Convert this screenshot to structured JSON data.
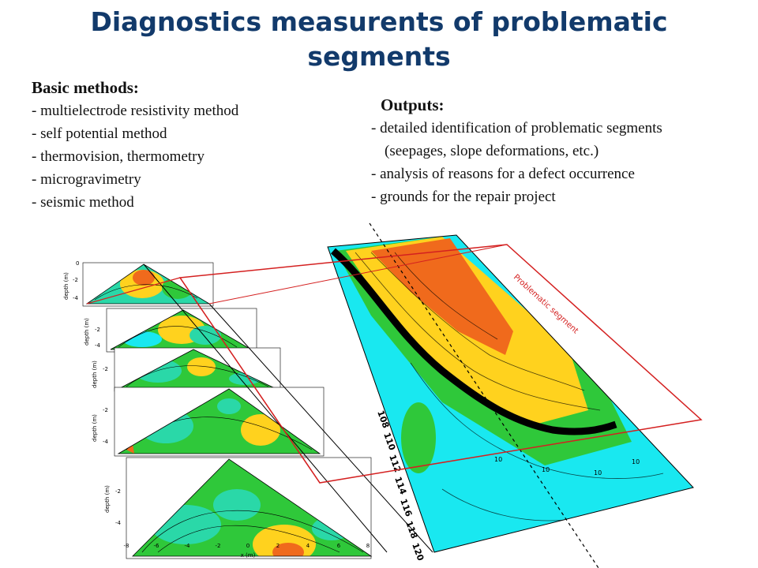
{
  "slide": {
    "title_line1": "Diagnostics measurents of problematic",
    "title_line2": "segments"
  },
  "methods": {
    "heading": "Basic methods:",
    "items": [
      "- multielectrode resistivity method",
      "- self potential method",
      "- thermovision, thermometry",
      "- microgravimetry",
      "- seismic method"
    ]
  },
  "outputs": {
    "heading": "Outputs:",
    "items": [
      "- detailed identification of problematic segments",
      "(seepages, slope deformations, etc.)",
      "- analysis of reasons for a defect occurrence",
      "- grounds for the repair project"
    ]
  },
  "figure": {
    "label": "Problematic segment",
    "x_axis_label": "x (m)",
    "y_axis_label": "depth (m)",
    "x_ticks": [
      "-8",
      "-6",
      "-4",
      "-2",
      "0",
      "2",
      "4",
      "6",
      "8"
    ],
    "y_ticks": [
      "0",
      "-2",
      "-4"
    ],
    "map_ticks": [
      "108",
      "110",
      "112",
      "114",
      "116",
      "118",
      "120"
    ],
    "contour_labels": [
      "10",
      "10",
      "10",
      "10"
    ],
    "colors": {
      "frame": "#d42020",
      "high": "#f06a1c",
      "mid": "#ffd21e",
      "green": "#2fc83a",
      "cyan": "#19e8f0",
      "seafoam": "#2ad8a8"
    }
  }
}
